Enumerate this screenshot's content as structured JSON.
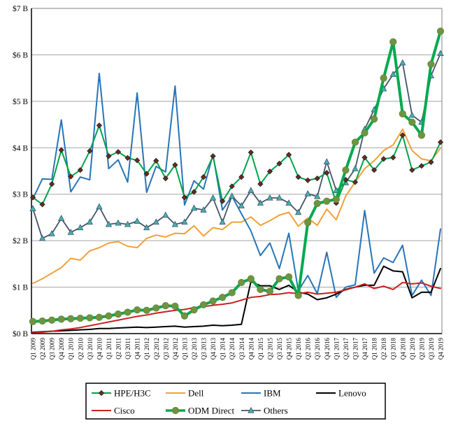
{
  "chart_data": {
    "type": "line",
    "title": "",
    "xlabel": "",
    "ylabel": "",
    "y_axis": {
      "min": 0,
      "max": 7,
      "tick_interval": 1,
      "tick_labels": [
        "$0 B",
        "$1 B",
        "$2 B",
        "$3 B",
        "$4 B",
        "$5 B",
        "$6 B",
        "$7 B"
      ],
      "grid": true
    },
    "x_categories": [
      "Q1 2009",
      "Q2 2009",
      "Q3 2009",
      "Q4 2009",
      "Q1 2010",
      "Q2 2010",
      "Q3 2010",
      "Q4 2010",
      "Q1 2011",
      "Q2 2011",
      "Q3 2011",
      "Q4 2011",
      "Q1 2012",
      "Q2 2012",
      "Q3 2012",
      "Q4 2012",
      "Q1 2013",
      "Q2 2013",
      "Q3 2013",
      "Q4 2013",
      "Q1 2014",
      "Q2 2014",
      "Q3 2014",
      "Q4 2014",
      "Q1 2015",
      "Q2 2015",
      "Q3 2015",
      "Q4 2015",
      "Q1 2016",
      "Q2 2016",
      "Q3 2016",
      "Q4 2016",
      "Q1 2017",
      "Q2 2017",
      "Q3 2017",
      "Q4 2017",
      "Q1 2018",
      "Q2 2018",
      "Q3 2018",
      "Q4 2018",
      "Q1 2019",
      "Q2 2019",
      "Q3 2019",
      "Q4 2019"
    ],
    "legend": {
      "position": "bottom",
      "rows": 2,
      "columns": 4
    },
    "units": "billions USD per quarter",
    "series": [
      {
        "name": "HPE/H3C",
        "color": "#00A44A",
        "marker": "diamond",
        "marker_color": "#6B2A23",
        "line_width": 2,
        "values": [
          2.93,
          2.78,
          3.22,
          3.95,
          3.38,
          3.52,
          3.93,
          4.48,
          3.82,
          3.91,
          3.78,
          3.73,
          3.44,
          3.72,
          3.34,
          3.63,
          2.93,
          3.05,
          3.37,
          3.82,
          2.85,
          3.17,
          3.37,
          3.9,
          3.22,
          3.49,
          3.66,
          3.85,
          3.37,
          3.3,
          3.34,
          3.46,
          2.81,
          3.31,
          3.26,
          3.79,
          3.52,
          3.76,
          3.79,
          4.27,
          3.52,
          3.61,
          3.69,
          4.12
        ]
      },
      {
        "name": "Dell",
        "color": "#EFA13A",
        "marker": "none",
        "marker_color": "",
        "line_width": 2,
        "values": [
          1.08,
          1.18,
          1.3,
          1.42,
          1.62,
          1.58,
          1.78,
          1.85,
          1.95,
          1.98,
          1.88,
          1.85,
          2.05,
          2.12,
          2.08,
          2.16,
          2.15,
          2.32,
          2.1,
          2.28,
          2.24,
          2.4,
          2.4,
          2.51,
          2.33,
          2.43,
          2.55,
          2.61,
          2.31,
          2.49,
          2.33,
          2.68,
          2.45,
          2.96,
          3.26,
          3.55,
          3.72,
          3.94,
          4.06,
          4.4,
          3.94,
          3.76,
          3.72,
          3.99
        ]
      },
      {
        "name": "IBM",
        "color": "#2874B8",
        "marker": "none",
        "marker_color": "",
        "line_width": 2,
        "values": [
          2.9,
          3.33,
          3.32,
          4.6,
          3.05,
          3.37,
          3.31,
          5.6,
          3.55,
          3.74,
          3.26,
          5.18,
          3.04,
          3.6,
          3.48,
          5.33,
          2.77,
          3.29,
          3.11,
          3.85,
          2.66,
          2.96,
          2.58,
          2.21,
          1.68,
          1.95,
          1.4,
          2.16,
          0.92,
          1.25,
          0.86,
          1.75,
          0.78,
          1.0,
          1.05,
          2.65,
          1.3,
          1.63,
          1.53,
          1.9,
          0.82,
          1.15,
          0.82,
          2.25
        ]
      },
      {
        "name": "Lenovo",
        "color": "#000000",
        "marker": "none",
        "marker_color": "",
        "line_width": 2,
        "values": [
          0.03,
          0.04,
          0.05,
          0.06,
          0.07,
          0.08,
          0.09,
          0.11,
          0.11,
          0.12,
          0.13,
          0.14,
          0.13,
          0.14,
          0.15,
          0.16,
          0.14,
          0.15,
          0.16,
          0.18,
          0.17,
          0.18,
          0.2,
          1.12,
          1.03,
          1.03,
          0.95,
          1.04,
          0.89,
          0.85,
          0.73,
          0.77,
          0.85,
          0.95,
          1.0,
          1.04,
          1.04,
          1.45,
          1.35,
          1.33,
          0.77,
          0.89,
          0.89,
          1.4
        ]
      },
      {
        "name": "Cisco",
        "color": "#CC1F1F",
        "marker": "none",
        "marker_color": "",
        "line_width": 2,
        "values": [
          0.02,
          0.03,
          0.05,
          0.08,
          0.1,
          0.13,
          0.17,
          0.21,
          0.25,
          0.29,
          0.33,
          0.37,
          0.4,
          0.44,
          0.47,
          0.5,
          0.52,
          0.56,
          0.58,
          0.61,
          0.63,
          0.66,
          0.72,
          0.78,
          0.8,
          0.84,
          0.85,
          0.88,
          0.86,
          0.89,
          0.85,
          0.87,
          0.89,
          0.94,
          1.0,
          1.07,
          0.97,
          1.02,
          0.95,
          1.1,
          1.07,
          1.09,
          1.02,
          0.97
        ]
      },
      {
        "name": "ODM Direct",
        "color": "#00A94F",
        "marker": "circle",
        "marker_color": "#6F9440",
        "line_width": 4,
        "values": [
          0.26,
          0.27,
          0.29,
          0.31,
          0.32,
          0.33,
          0.34,
          0.35,
          0.38,
          0.42,
          0.46,
          0.51,
          0.5,
          0.55,
          0.6,
          0.59,
          0.38,
          0.51,
          0.62,
          0.7,
          0.78,
          0.88,
          1.1,
          1.18,
          0.95,
          0.91,
          1.18,
          1.22,
          0.82,
          2.39,
          2.8,
          2.85,
          2.89,
          3.52,
          4.12,
          4.32,
          4.62,
          5.5,
          6.28,
          4.73,
          4.55,
          4.27,
          5.8,
          6.51
        ]
      },
      {
        "name": "Others",
        "color": "#44546A",
        "marker": "triangle",
        "marker_color": "#3FB3AE",
        "line_width": 1.8,
        "values": [
          2.69,
          2.05,
          2.15,
          2.48,
          2.18,
          2.28,
          2.4,
          2.73,
          2.35,
          2.38,
          2.35,
          2.42,
          2.28,
          2.4,
          2.55,
          2.35,
          2.4,
          2.7,
          2.66,
          2.92,
          2.4,
          2.96,
          2.75,
          3.08,
          2.81,
          2.92,
          2.92,
          2.81,
          2.61,
          3.01,
          2.95,
          3.7,
          3.08,
          3.25,
          3.55,
          4.4,
          4.82,
          5.27,
          5.58,
          5.83,
          4.7,
          4.55,
          5.55,
          6.03
        ]
      }
    ]
  }
}
